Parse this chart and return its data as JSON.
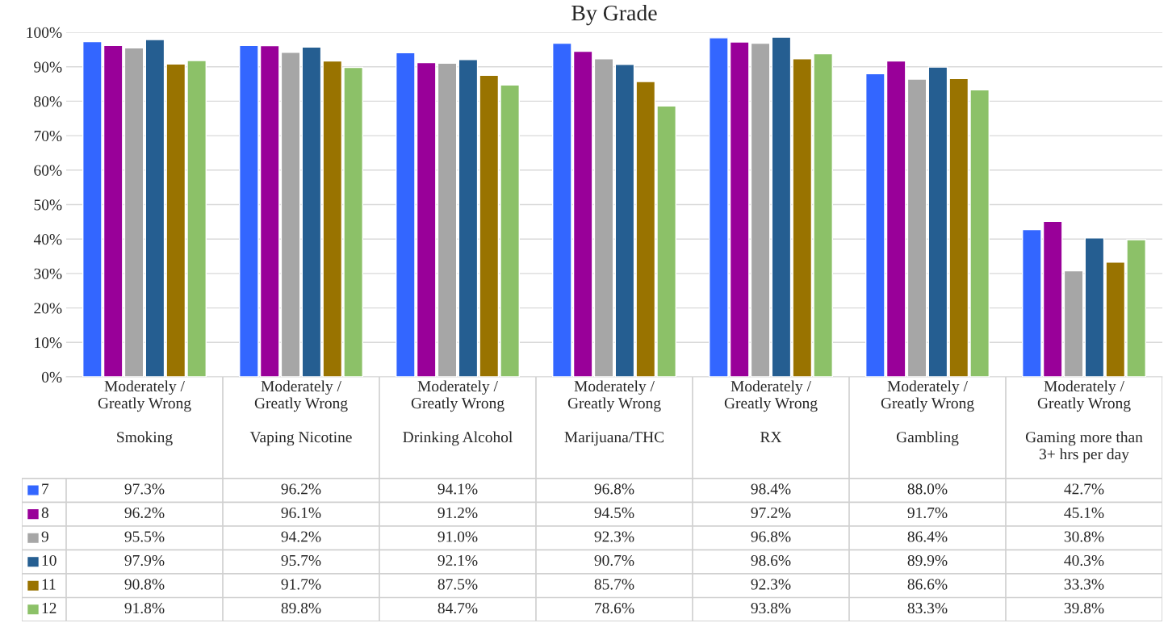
{
  "chart_data": {
    "type": "bar",
    "title": "By Grade",
    "categories": [
      "Moderately /\nGreatly Wrong\n\nSmoking",
      "Moderately /\nGreatly Wrong\n\nVaping Nicotine",
      "Moderately /\nGreatly Wrong\n\nDrinking Alcohol",
      "Moderately /\nGreatly Wrong\n\nMarijuana/THC",
      "Moderately /\nGreatly Wrong\n\nRX",
      "Moderately /\nGreatly Wrong\n\nGambling",
      "Moderately /\nGreatly Wrong\n\nGaming more than\n3+ hrs per day"
    ],
    "series": [
      {
        "name": "7",
        "color": "#3366ff",
        "values": [
          97.3,
          96.2,
          94.1,
          96.8,
          98.4,
          88.0,
          42.7
        ],
        "value_labels": [
          "97.3%",
          "96.2%",
          "94.1%",
          "96.8%",
          "98.4%",
          "88.0%",
          "42.7%"
        ]
      },
      {
        "name": "8",
        "color": "#990099",
        "values": [
          96.2,
          96.1,
          91.2,
          94.5,
          97.2,
          91.7,
          45.1
        ],
        "value_labels": [
          "96.2%",
          "96.1%",
          "91.2%",
          "94.5%",
          "97.2%",
          "91.7%",
          "45.1%"
        ]
      },
      {
        "name": "9",
        "color": "#a6a6a6",
        "values": [
          95.5,
          94.2,
          91.0,
          92.3,
          96.8,
          86.4,
          30.8
        ],
        "value_labels": [
          "95.5%",
          "94.2%",
          "91.0%",
          "92.3%",
          "96.8%",
          "86.4%",
          "30.8%"
        ]
      },
      {
        "name": "10",
        "color": "#255e91",
        "values": [
          97.9,
          95.7,
          92.1,
          90.7,
          98.6,
          89.9,
          40.3
        ],
        "value_labels": [
          "97.9%",
          "95.7%",
          "92.1%",
          "90.7%",
          "98.6%",
          "89.9%",
          "40.3%"
        ]
      },
      {
        "name": "11",
        "color": "#997300",
        "values": [
          90.8,
          91.7,
          87.5,
          85.7,
          92.3,
          86.6,
          33.3
        ],
        "value_labels": [
          "90.8%",
          "91.7%",
          "87.5%",
          "85.7%",
          "92.3%",
          "86.6%",
          "33.3%"
        ]
      },
      {
        "name": "12",
        "color": "#8cc168",
        "values": [
          91.8,
          89.8,
          84.7,
          78.6,
          93.8,
          83.3,
          39.8
        ],
        "value_labels": [
          "91.8%",
          "89.8%",
          "84.7%",
          "78.6%",
          "93.8%",
          "83.3%",
          "39.8%"
        ]
      }
    ],
    "ylim": [
      0,
      100
    ],
    "yticks": [
      {
        "value": 0,
        "label": "0%"
      },
      {
        "value": 10,
        "label": "10%"
      },
      {
        "value": 20,
        "label": "20%"
      },
      {
        "value": 30,
        "label": "30%"
      },
      {
        "value": 40,
        "label": "40%"
      },
      {
        "value": 50,
        "label": "50%"
      },
      {
        "value": 60,
        "label": "60%"
      },
      {
        "value": 70,
        "label": "70%"
      },
      {
        "value": 80,
        "label": "80%"
      },
      {
        "value": 90,
        "label": "90%"
      },
      {
        "value": 100,
        "label": "100%"
      }
    ],
    "grid": "y",
    "legend": "bottom"
  }
}
